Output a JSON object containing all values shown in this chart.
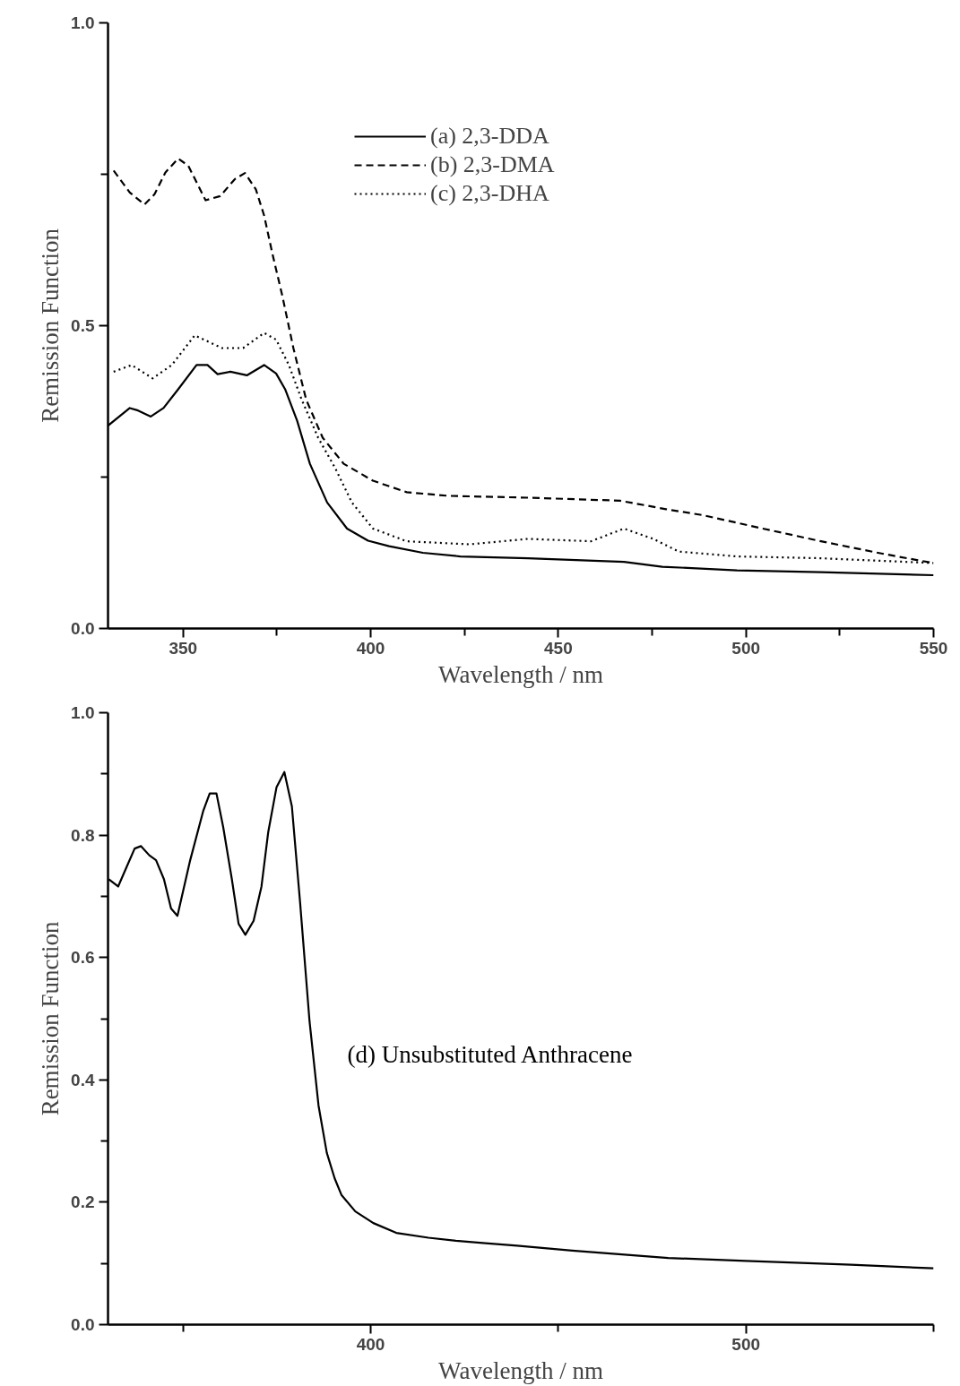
{
  "chart_data": [
    {
      "type": "line",
      "xlabel": "Wavelength / nm",
      "ylabel": "Remission Function",
      "xlim": [
        330,
        550
      ],
      "ylim": [
        0,
        1
      ],
      "xticks": [
        350,
        {
          "value": 375,
          "label": null
        },
        400,
        {
          "value": 425,
          "label": null
        },
        450,
        {
          "value": 475,
          "label": null
        },
        500,
        {
          "value": 525,
          "label": null
        },
        550
      ],
      "yticks": [
        {
          "value": 0,
          "label": "0.0"
        },
        {
          "value": 0.25,
          "label": null
        },
        {
          "value": 0.5,
          "label": "0.5"
        },
        {
          "value": 0.75,
          "label": null
        },
        {
          "value": 1,
          "label": "1.0"
        }
      ],
      "grid": false,
      "legend": "top",
      "series": [
        {
          "name": "(a) 2,3-DDA",
          "color": "#000000",
          "line_style": "solid",
          "x": [
            330,
            335.8,
            338,
            341.4,
            344.8,
            348.7,
            353.6,
            356.5,
            359.2,
            362.6,
            367,
            371.6,
            374.8,
            377.2,
            380.4,
            383.8,
            388.4,
            393.7,
            399.3,
            404.9,
            413.9,
            423.9,
            441.9,
            467.5,
            477.7,
            497.6,
            520,
            550
          ],
          "values": [
            0.335,
            0.364,
            0.36,
            0.35,
            0.364,
            0.395,
            0.435,
            0.435,
            0.42,
            0.424,
            0.418,
            0.435,
            0.421,
            0.395,
            0.343,
            0.272,
            0.208,
            0.165,
            0.145,
            0.136,
            0.125,
            0.119,
            0.116,
            0.11,
            0.102,
            0.096,
            0.093,
            0.088
          ]
        },
        {
          "name": "(b) 2,3-DMA",
          "color": "#000000",
          "line_style": "dashed",
          "x": [
            331.5,
            335.8,
            339.7,
            342.4,
            345.3,
            348.7,
            351.4,
            356,
            359.9,
            363.8,
            366.5,
            369.4,
            371.6,
            373.8,
            376.5,
            379.4,
            382.8,
            387.2,
            392.8,
            400.6,
            409.6,
            420.8,
            441.9,
            466.5,
            478.7,
            488.6,
            504.5,
            520,
            536.8,
            550
          ],
          "values": [
            0.756,
            0.72,
            0.7,
            0.717,
            0.753,
            0.776,
            0.764,
            0.707,
            0.714,
            0.742,
            0.752,
            0.725,
            0.682,
            0.619,
            0.548,
            0.463,
            0.378,
            0.315,
            0.272,
            0.244,
            0.225,
            0.219,
            0.216,
            0.211,
            0.197,
            0.187,
            0.165,
            0.144,
            0.123,
            0.108
          ]
        },
        {
          "name": "(c) 2,3-DHA",
          "color": "#000000",
          "line_style": "dotted",
          "x": [
            331.5,
            336.3,
            341.9,
            347,
            353.1,
            360.4,
            366,
            371.6,
            374.8,
            378.2,
            381.6,
            386,
            390.6,
            395,
            400.6,
            409.6,
            426.4,
            441.9,
            458.7,
            467.5,
            475.3,
            482.1,
            497.6,
            520,
            550
          ],
          "values": [
            0.424,
            0.435,
            0.413,
            0.435,
            0.484,
            0.463,
            0.463,
            0.488,
            0.477,
            0.435,
            0.378,
            0.315,
            0.264,
            0.208,
            0.165,
            0.144,
            0.139,
            0.148,
            0.144,
            0.165,
            0.148,
            0.127,
            0.119,
            0.116,
            0.108
          ]
        }
      ]
    },
    {
      "type": "line",
      "xlabel": "Wavelength / nm",
      "ylabel": "Remission Function",
      "xlim": [
        330,
        550
      ],
      "ylim": [
        0,
        1
      ],
      "xticks": [
        {
          "value": 350,
          "label": null
        },
        400,
        {
          "value": 450,
          "label": null
        },
        500,
        {
          "value": 550,
          "label": null
        }
      ],
      "yticks": [
        {
          "value": 0,
          "label": "0.0"
        },
        {
          "value": 0.1,
          "label": null
        },
        {
          "value": 0.2,
          "label": "0.2"
        },
        {
          "value": 0.3,
          "label": null
        },
        {
          "value": 0.4,
          "label": "0.4"
        },
        {
          "value": 0.5,
          "label": null
        },
        {
          "value": 0.6,
          "label": "0.6"
        },
        {
          "value": 0.7,
          "label": null
        },
        {
          "value": 0.8,
          "label": "0.8"
        },
        {
          "value": 0.9,
          "label": null
        },
        {
          "value": 1,
          "label": "1.0"
        }
      ],
      "grid": false,
      "series": [
        {
          "name": "(d) Unsubstituted Anthracene",
          "color": "#000000",
          "line_style": "solid",
          "x": [
            330.2,
            332.7,
            334.9,
            337.1,
            338.8,
            341,
            342.8,
            344.9,
            346.8,
            348.5,
            351.9,
            355.4,
            357.1,
            358.9,
            360.7,
            363,
            364.8,
            366.6,
            368.8,
            370.9,
            372.7,
            374.9,
            377,
            379,
            381.2,
            383.7,
            386.1,
            388.3,
            390.4,
            392.2,
            395.9,
            400.7,
            406.8,
            415.4,
            422.7,
            430.6,
            439,
            453.7,
            479.3,
            500,
            528,
            550
          ],
          "values": [
            0.728,
            0.716,
            0.747,
            0.778,
            0.782,
            0.767,
            0.759,
            0.728,
            0.68,
            0.668,
            0.759,
            0.84,
            0.868,
            0.868,
            0.813,
            0.728,
            0.655,
            0.637,
            0.66,
            0.716,
            0.805,
            0.878,
            0.903,
            0.847,
            0.689,
            0.496,
            0.358,
            0.281,
            0.239,
            0.212,
            0.185,
            0.166,
            0.15,
            0.142,
            0.137,
            0.133,
            0.129,
            0.121,
            0.109,
            0.104,
            0.098,
            0.092
          ]
        }
      ]
    }
  ]
}
